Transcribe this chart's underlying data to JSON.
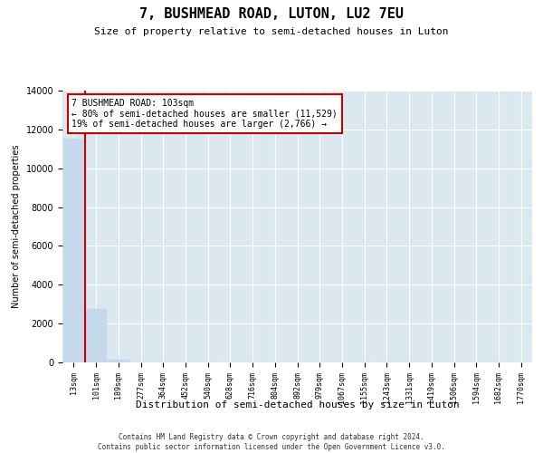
{
  "title": "7, BUSHMEAD ROAD, LUTON, LU2 7EU",
  "subtitle": "Size of property relative to semi-detached houses in Luton",
  "xlabel": "Distribution of semi-detached houses by size in Luton",
  "ylabel": "Number of semi-detached properties",
  "categories": [
    "13sqm",
    "101sqm",
    "189sqm",
    "277sqm",
    "364sqm",
    "452sqm",
    "540sqm",
    "628sqm",
    "716sqm",
    "804sqm",
    "892sqm",
    "979sqm",
    "1067sqm",
    "1155sqm",
    "1243sqm",
    "1331sqm",
    "1419sqm",
    "1506sqm",
    "1594sqm",
    "1682sqm",
    "1770sqm"
  ],
  "values": [
    11529,
    2766,
    150,
    0,
    0,
    0,
    0,
    0,
    0,
    0,
    0,
    0,
    0,
    0,
    0,
    0,
    0,
    0,
    0,
    0,
    0
  ],
  "bar_color": "#c5d8ec",
  "bar_edge_color": "#c5d8ec",
  "property_line_color": "#cc0000",
  "annotation_text": "7 BUSHMEAD ROAD: 103sqm\n← 80% of semi-detached houses are smaller (11,529)\n19% of semi-detached houses are larger (2,766) →",
  "annotation_box_color": "#ffffff",
  "annotation_box_edge_color": "#cc0000",
  "ylim": [
    0,
    14000
  ],
  "yticks": [
    0,
    2000,
    4000,
    6000,
    8000,
    10000,
    12000,
    14000
  ],
  "background_color": "#dce8f0",
  "grid_color": "#ffffff",
  "footer_line1": "Contains HM Land Registry data © Crown copyright and database right 2024.",
  "footer_line2": "Contains public sector information licensed under the Open Government Licence v3.0."
}
